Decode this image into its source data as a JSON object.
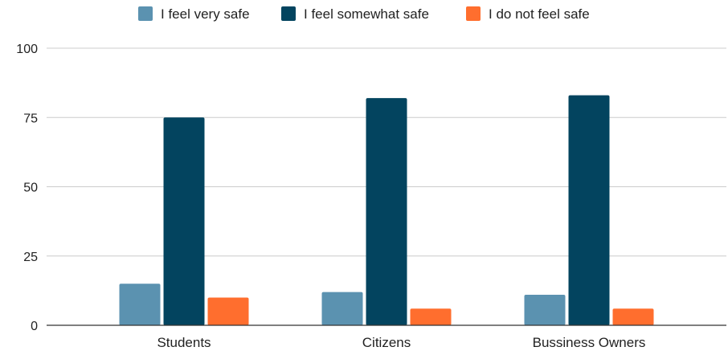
{
  "chart_data": {
    "type": "bar",
    "title": "",
    "xlabel": "",
    "ylabel": "",
    "categories": [
      "Students",
      "Citizens",
      "Bussiness Owners"
    ],
    "series": [
      {
        "name": "I feel very safe",
        "color": "#5b92b0",
        "values": [
          15,
          12,
          11
        ]
      },
      {
        "name": "I feel somewhat safe",
        "color": "#03445f",
        "values": [
          75,
          82,
          83
        ]
      },
      {
        "name": "I do not feel safe",
        "color": "#ff6e2e",
        "values": [
          10,
          6,
          6
        ]
      }
    ],
    "ylim": [
      0,
      100
    ],
    "yticks": [
      0,
      25,
      50,
      75,
      100
    ],
    "grid": true,
    "legend_position": "top-center"
  }
}
